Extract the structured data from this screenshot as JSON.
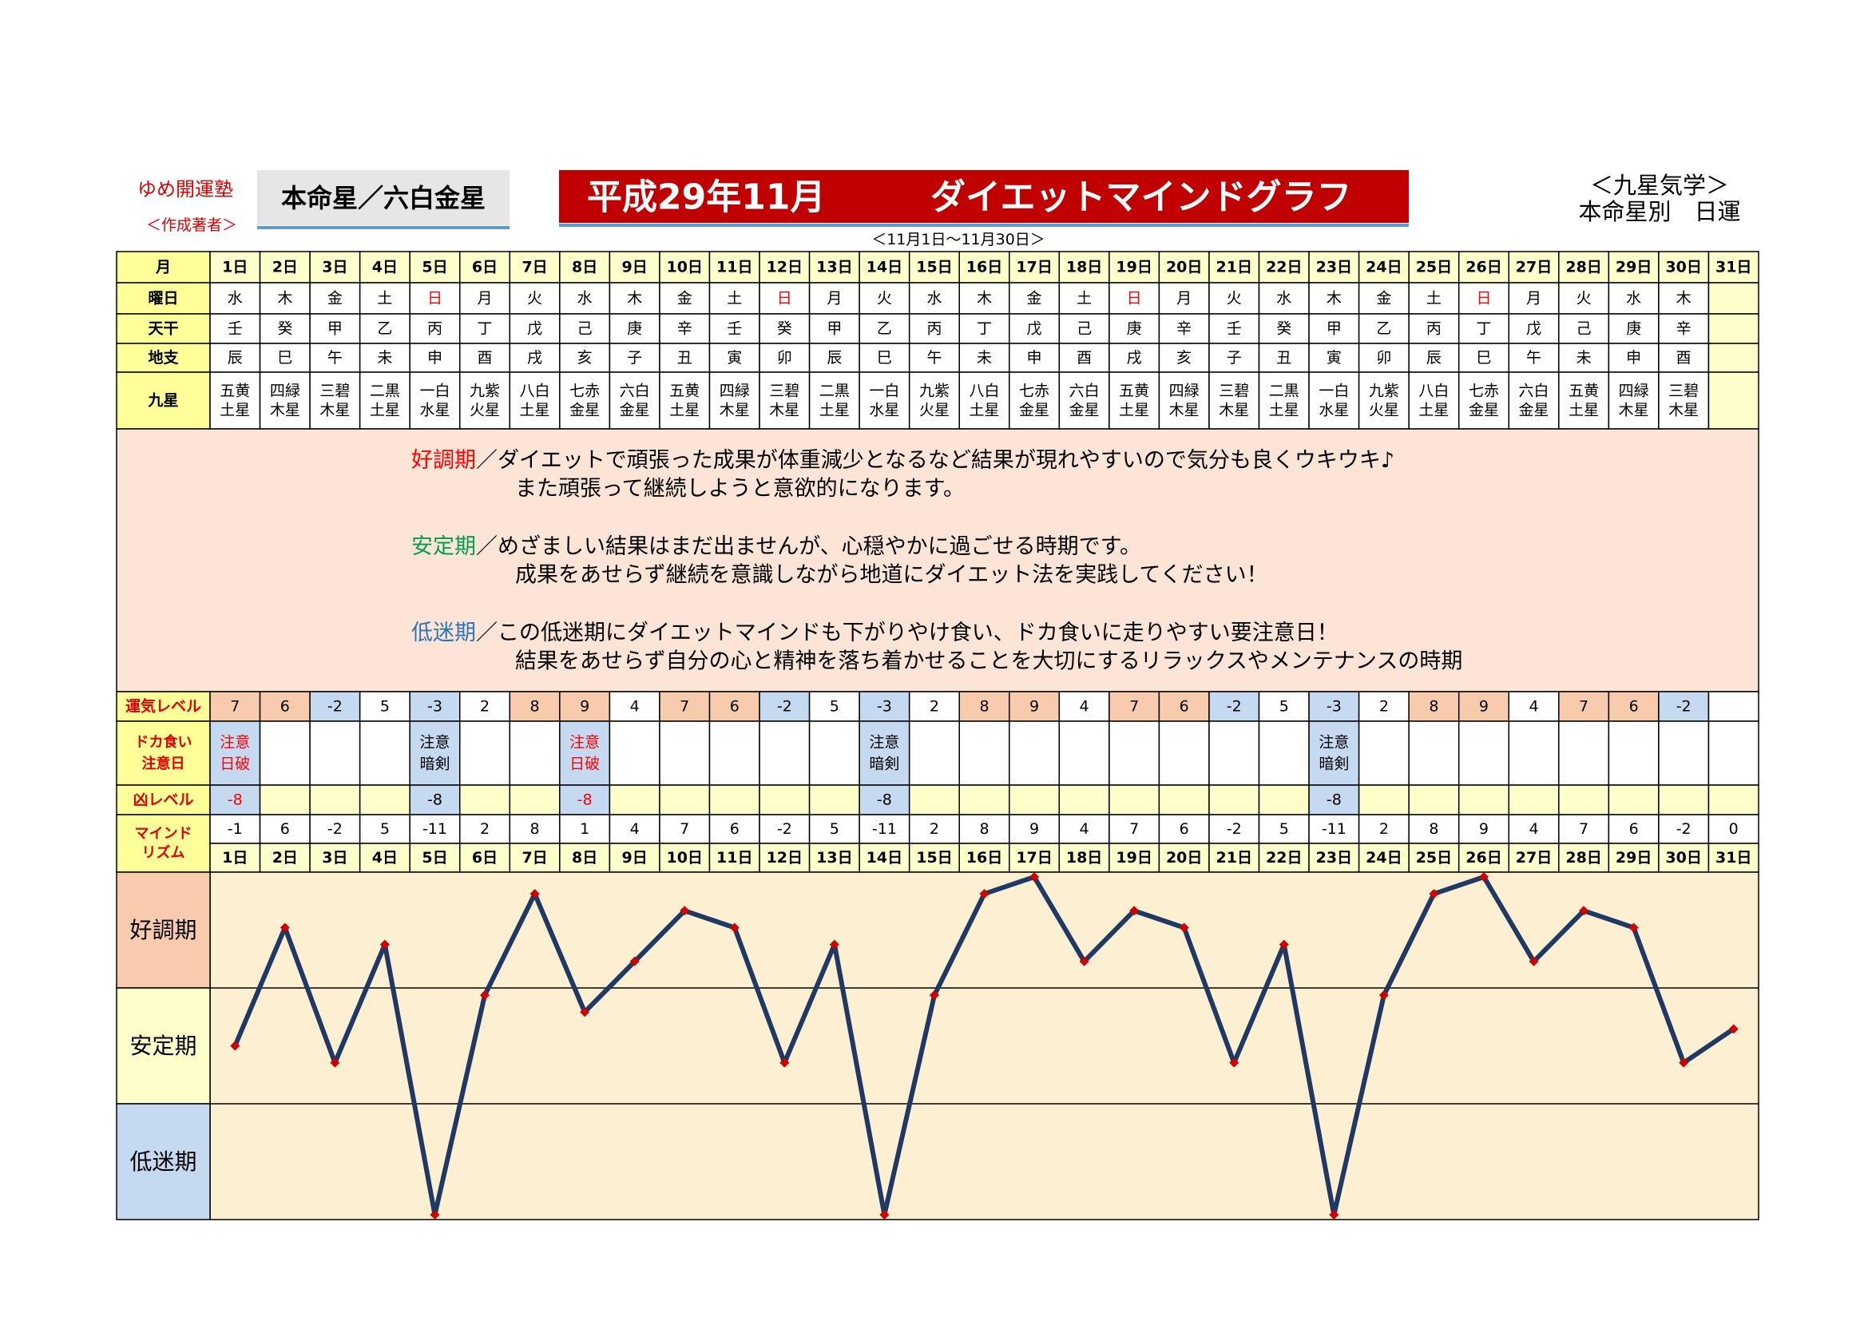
{
  "header": {
    "school": "ゆめ開運塾",
    "author": "＜作成著者＞",
    "star": "本命星／六白金星",
    "title_month": "平成29年11月",
    "title": "ダイエットマインドグラフ",
    "period": "＜11月1日〜11月30日＞",
    "right1": "＜九星気学＞",
    "right2": "本命星別　日運"
  },
  "table": {
    "row_labels": {
      "month": "月",
      "weekday": "曜日",
      "tenkan": "天干",
      "chishi": "地支",
      "kyusei": "九星",
      "fortune": "運気レベル",
      "caution": [
        "ドカ食い",
        "注意日"
      ],
      "kyo": "凶レベル",
      "mind": [
        "マインド",
        "リズム"
      ]
    },
    "days": [
      "1日",
      "2日",
      "3日",
      "4日",
      "5日",
      "6日",
      "7日",
      "8日",
      "9日",
      "10日",
      "11日",
      "12日",
      "13日",
      "14日",
      "15日",
      "16日",
      "17日",
      "18日",
      "19日",
      "20日",
      "21日",
      "22日",
      "23日",
      "24日",
      "25日",
      "26日",
      "27日",
      "28日",
      "29日",
      "30日",
      "31日"
    ],
    "weekdays": [
      "水",
      "木",
      "金",
      "土",
      "日",
      "月",
      "火",
      "水",
      "木",
      "金",
      "土",
      "日",
      "月",
      "火",
      "水",
      "木",
      "金",
      "土",
      "日",
      "月",
      "火",
      "水",
      "木",
      "金",
      "土",
      "日",
      "月",
      "火",
      "水",
      "木",
      null
    ],
    "weekday_colors": [
      "#000000",
      "#000000",
      "#000000",
      "#000000",
      "#ff0000",
      "#000000",
      "#000000",
      "#000000",
      "#000000",
      "#000000",
      "#000000",
      "#ff0000",
      "#000000",
      "#000000",
      "#000000",
      "#000000",
      "#000000",
      "#000000",
      "#ff0000",
      "#000000",
      "#000000",
      "#000000",
      "#000000",
      "#000000",
      "#000000",
      "#ff0000",
      "#000000",
      "#000000",
      "#000000",
      "#000000",
      null
    ],
    "tenkan": [
      "壬",
      "癸",
      "甲",
      "乙",
      "丙",
      "丁",
      "戊",
      "己",
      "庚",
      "辛",
      "壬",
      "癸",
      "甲",
      "乙",
      "丙",
      "丁",
      "戊",
      "己",
      "庚",
      "辛",
      "壬",
      "癸",
      "甲",
      "乙",
      "丙",
      "丁",
      "戊",
      "己",
      "庚",
      "辛",
      null
    ],
    "chishi": [
      "辰",
      "巳",
      "午",
      "未",
      "申",
      "酉",
      "戌",
      "亥",
      "子",
      "丑",
      "寅",
      "卯",
      "辰",
      "巳",
      "午",
      "未",
      "申",
      "酉",
      "戌",
      "亥",
      "子",
      "丑",
      "寅",
      "卯",
      "辰",
      "巳",
      "午",
      "未",
      "申",
      "酉",
      null
    ],
    "kyusei": [
      [
        "五黄",
        "土星"
      ],
      [
        "四緑",
        "木星"
      ],
      [
        "三碧",
        "木星"
      ],
      [
        "二黒",
        "土星"
      ],
      [
        "一白",
        "水星"
      ],
      [
        "九紫",
        "火星"
      ],
      [
        "八白",
        "土星"
      ],
      [
        "七赤",
        "金星"
      ],
      [
        "六白",
        "金星"
      ],
      [
        "五黄",
        "土星"
      ],
      [
        "四緑",
        "木星"
      ],
      [
        "三碧",
        "木星"
      ],
      [
        "二黒",
        "土星"
      ],
      [
        "一白",
        "水星"
      ],
      [
        "九紫",
        "火星"
      ],
      [
        "八白",
        "土星"
      ],
      [
        "七赤",
        "金星"
      ],
      [
        "六白",
        "金星"
      ],
      [
        "五黄",
        "土星"
      ],
      [
        "四緑",
        "木星"
      ],
      [
        "三碧",
        "木星"
      ],
      [
        "二黒",
        "土星"
      ],
      [
        "一白",
        "水星"
      ],
      [
        "九紫",
        "火星"
      ],
      [
        "八白",
        "土星"
      ],
      [
        "七赤",
        "金星"
      ],
      [
        "六白",
        "金星"
      ],
      [
        "五黄",
        "土星"
      ],
      [
        "四緑",
        "木星"
      ],
      [
        "三碧",
        "木星"
      ],
      null
    ],
    "fortune": [
      7,
      6,
      -2,
      5,
      -3,
      2,
      8,
      9,
      4,
      7,
      6,
      -2,
      5,
      -3,
      2,
      8,
      9,
      4,
      7,
      6,
      -2,
      5,
      -3,
      2,
      8,
      9,
      4,
      7,
      6,
      -2,
      null
    ],
    "fortune_colors": [
      "#f8cbad",
      "#f8cbad",
      "#c5d9f1",
      "#ffffff",
      "#c5d9f1",
      "#ffffff",
      "#f8cbad",
      "#f8cbad",
      "#ffffff",
      "#f8cbad",
      "#f8cbad",
      "#c5d9f1",
      "#ffffff",
      "#c5d9f1",
      "#ffffff",
      "#f8cbad",
      "#f8cbad",
      "#ffffff",
      "#f8cbad",
      "#f8cbad",
      "#c5d9f1",
      "#ffffff",
      "#c5d9f1",
      "#ffffff",
      "#f8cbad",
      "#f8cbad",
      "#ffffff",
      "#f8cbad",
      "#f8cbad",
      "#c5d9f1",
      null
    ],
    "caution": [
      {
        "lines": [
          "注意",
          "日破"
        ],
        "color": "#ff0000"
      },
      null,
      null,
      null,
      {
        "lines": [
          "注意",
          "暗剣"
        ],
        "color": "#000000"
      },
      null,
      null,
      {
        "lines": [
          "注意",
          "日破"
        ],
        "color": "#ff0000"
      },
      null,
      null,
      null,
      null,
      null,
      {
        "lines": [
          "注意",
          "暗剣"
        ],
        "color": "#000000"
      },
      null,
      null,
      null,
      null,
      null,
      null,
      null,
      null,
      {
        "lines": [
          "注意",
          "暗剣"
        ],
        "color": "#000000"
      },
      null,
      null,
      null,
      null,
      null,
      null,
      null,
      null
    ],
    "kyo": [
      -8,
      null,
      null,
      null,
      -8,
      null,
      null,
      -8,
      null,
      null,
      null,
      null,
      null,
      -8,
      null,
      null,
      null,
      null,
      null,
      null,
      null,
      null,
      -8,
      null,
      null,
      null,
      null,
      null,
      null,
      null,
      null
    ]
  },
  "description": [
    {
      "label": "好調期",
      "color": "#ff0000",
      "lines": [
        "／ダイエットで頑張った成果が体重減少となるなど結果が現れやすいので気分も良くウキウキ♪",
        "また頑張って継続しようと意欲的になります。"
      ]
    },
    {
      "label": "安定期",
      "color": "#00a050",
      "lines": [
        "／めざましい結果はまだ出ませんが、心穏やかに過ごせる時期です。",
        "成果をあせらず継続を意識しながら地道にダイエット法を実践してください！"
      ]
    },
    {
      "label": "低迷期",
      "color": "#2e75b6",
      "lines": [
        "／この低迷期にダイエットマインドも下がりやけ食い、ドカ食いに走りやすい要注意日！",
        "結果をあせらず自分の心と精神を落ち着かせることを大切にするリラックスやメンテナンスの時期"
      ]
    }
  ],
  "chart_data": {
    "type": "line",
    "categories": [
      "1日",
      "2日",
      "3日",
      "4日",
      "5日",
      "6日",
      "7日",
      "8日",
      "9日",
      "10日",
      "11日",
      "12日",
      "13日",
      "14日",
      "15日",
      "16日",
      "17日",
      "18日",
      "19日",
      "20日",
      "21日",
      "22日",
      "23日",
      "24日",
      "25日",
      "26日",
      "27日",
      "28日",
      "29日",
      "30日",
      "31日"
    ],
    "values": [
      -1,
      6,
      -2,
      5,
      -11,
      2,
      8,
      1,
      4,
      7,
      6,
      -2,
      5,
      -11,
      2,
      8,
      9,
      4,
      7,
      6,
      -2,
      5,
      -11,
      2,
      8,
      9,
      4,
      7,
      6,
      -2,
      0
    ],
    "ylim": [
      -11,
      9
    ],
    "bands": [
      "好調期",
      "安定期",
      "低迷期"
    ],
    "band_colors": [
      "#f8cbad",
      "#ffffcc",
      "#c5d9f1"
    ],
    "background": "#fdf0d2",
    "color": "#1f3864",
    "marker_color": "#d00000"
  }
}
